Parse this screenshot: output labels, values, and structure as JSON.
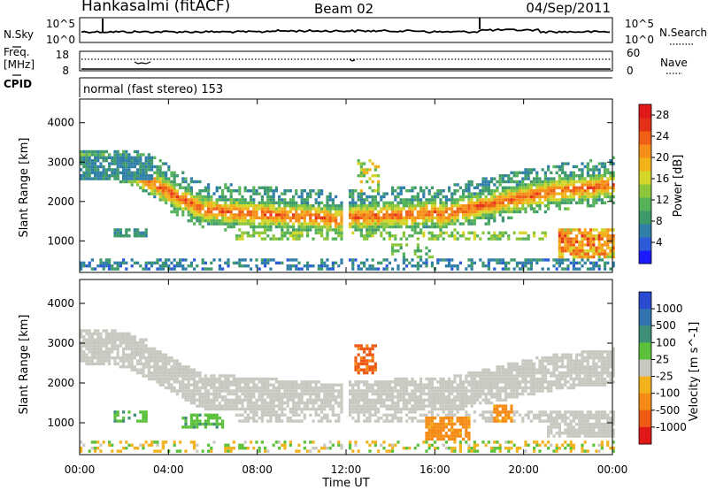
{
  "header": {
    "station": "Hankasalmi (fitACF)",
    "beam": "Beam 02",
    "date": "04/Sep/2011"
  },
  "status_panels": {
    "nsky": {
      "label": "N.Sky",
      "left_ticks": [
        "10^5",
        "10^0"
      ],
      "right_ticks": [
        "10^5",
        "10^0"
      ],
      "right_label": "N.Search"
    },
    "freq": {
      "label_line1": "Freq.",
      "label_line2": "[MHz]",
      "left_ticks": [
        "18",
        "8"
      ],
      "right_ticks": [
        "60",
        "0"
      ],
      "right_label": "Nave"
    },
    "cpid": {
      "label": "CPID",
      "program": "normal (fast stereo) 153"
    }
  },
  "x_axis": {
    "label": "Time UT",
    "ticks": [
      "00:00",
      "04:00",
      "08:00",
      "12:00",
      "16:00",
      "20:00",
      "00:00"
    ]
  },
  "chart_data": [
    {
      "type": "heatmap",
      "quantity": "Power",
      "ylabel": "Slant Range [km]",
      "yticks": [
        "1000",
        "2000",
        "3000",
        "4000"
      ],
      "ylim": [
        200,
        4600
      ],
      "xlim_hours": [
        0,
        24
      ],
      "colorbar": {
        "label": "Power [dB]",
        "ticks": [
          "4",
          "8",
          "12",
          "16",
          "20",
          "24",
          "28"
        ],
        "range": [
          0,
          30
        ],
        "colors": [
          "#1a1aff",
          "#2b5bd8",
          "#2f7fa8",
          "#3e9a6a",
          "#56b35a",
          "#8cc63a",
          "#d5d62a",
          "#f2b219",
          "#f58f17",
          "#ef5f16",
          "#e33018",
          "#e01818"
        ]
      },
      "bands": [
        {
          "name": "upper-backscatter",
          "hours": [
            0,
            24
          ],
          "km": [
            1400,
            3100
          ],
          "peak_dB": 24
        },
        {
          "name": "lower-band",
          "hours": [
            0,
            24
          ],
          "km": [
            900,
            1300
          ],
          "peak_dB": 14
        },
        {
          "name": "near-range-clutter",
          "hours": [
            0,
            24
          ],
          "km": [
            250,
            600
          ],
          "peak_dB": 8
        },
        {
          "name": "late-enhancement",
          "hours": [
            22,
            24
          ],
          "km": [
            500,
            1200
          ],
          "peak_dB": 28
        }
      ]
    },
    {
      "type": "heatmap",
      "quantity": "Velocity",
      "ylabel": "Slant Range [km]",
      "yticks": [
        "1000",
        "2000",
        "3000",
        "4000"
      ],
      "ylim": [
        200,
        4600
      ],
      "xlim_hours": [
        0,
        24
      ],
      "colorbar": {
        "label": "Velocity [m s^-1]",
        "ticks": [
          "1000",
          "500",
          "100",
          "25",
          "-25",
          "-100",
          "-500",
          "-1000"
        ],
        "colors": [
          "#2a4bd0",
          "#3373b0",
          "#3f8f78",
          "#5cc13a",
          "#c8c8c0",
          "#f2b21b",
          "#f58a14",
          "#ee5a14",
          "#e01818"
        ]
      },
      "features": [
        {
          "name": "ground-scatter-band",
          "hours": [
            0,
            24
          ],
          "km": [
            1300,
            3000
          ],
          "velocity_ms": 0
        },
        {
          "name": "positive-patch",
          "hours": [
            4.5,
            6.5
          ],
          "km": [
            800,
            1200
          ],
          "velocity_ms": 150
        },
        {
          "name": "negative-patch-noon",
          "hours": [
            12.3,
            13.3
          ],
          "km": [
            2200,
            2900
          ],
          "velocity_ms": -600
        },
        {
          "name": "negative-patch-afternoon",
          "hours": [
            15.5,
            17.5
          ],
          "km": [
            500,
            1100
          ],
          "velocity_ms": -200
        },
        {
          "name": "negative-patch-evening",
          "hours": [
            18.5,
            19.5
          ],
          "km": [
            1000,
            1400
          ],
          "velocity_ms": -200
        }
      ]
    }
  ]
}
